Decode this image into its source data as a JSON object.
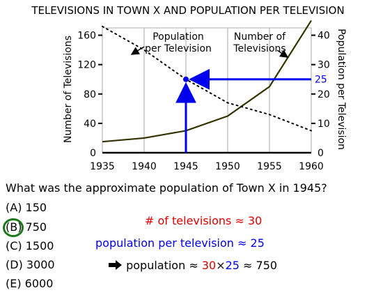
{
  "chart_data": {
    "type": "line",
    "title": "TELEVISIONS IN TOWN X AND POPULATION PER TELEVISION",
    "x": [
      1935,
      1940,
      1945,
      1950,
      1955,
      1960
    ],
    "xlim": [
      1935,
      1960
    ],
    "y_left_label": "Number of Televisions",
    "y_right_label": "Population per Television",
    "y_left_ticks": [
      0,
      40,
      80,
      120,
      160
    ],
    "y_right_ticks": [
      0,
      10,
      20,
      30,
      40
    ],
    "y_left_lim": [
      0,
      170
    ],
    "y_right_lim": [
      0,
      42.5
    ],
    "grid": "vertical",
    "series": [
      {
        "name": "Number of Televisions",
        "axis": "left",
        "style": "solid",
        "color": "#333300",
        "values": [
          15,
          20,
          30,
          50,
          90,
          180
        ]
      },
      {
        "name": "Population per Television",
        "axis": "right",
        "style": "dotted",
        "color": "#000000",
        "values": [
          43,
          35,
          25,
          17,
          13,
          7.5
        ]
      }
    ],
    "annotations": {
      "highlight_year": 1945,
      "highlight_value": 25,
      "highlight_label": "25",
      "highlight_color": "#0000ee"
    }
  },
  "question": "What was the approximate population of Town X in 1945?",
  "choices": [
    "(A) 150",
    "(B) 750",
    "(C) 1500",
    "(D) 3000",
    "(E) 6000"
  ],
  "correct_index": 1,
  "solution": {
    "line1_label": "# of televisions",
    "line1_value": "30",
    "line2_label": "population per television",
    "line2_value": "25",
    "line3_label": "population",
    "line3_a": "30",
    "line3_times": "×",
    "line3_b": "25",
    "line3_result": "750",
    "approx": "≈"
  }
}
